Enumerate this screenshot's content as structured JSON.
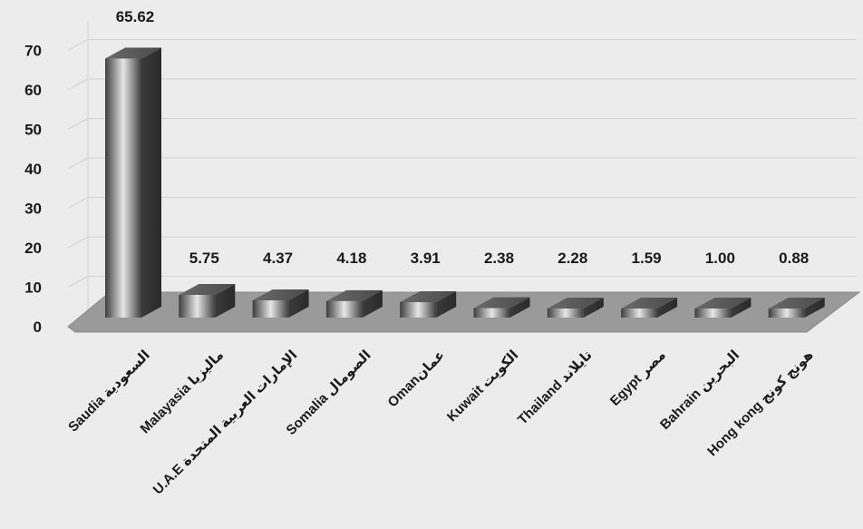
{
  "chart_data": {
    "type": "bar",
    "categories": [
      "Saudia السعودية",
      "Malayasia ماليزيا",
      "U.A.E الإمارات العربية المتحدة",
      "Somalia الصومال",
      "Omanعمان",
      "Kuwait الكويت",
      "Thailand تايلاند",
      "Egypt مصر",
      "Bahrain البحرين",
      "Hong kong هونج كونج"
    ],
    "values": [
      65.62,
      5.75,
      4.37,
      4.18,
      3.91,
      2.38,
      2.28,
      1.59,
      1.0,
      0.88
    ],
    "value_labels": [
      "65.62",
      "5.75",
      "4.37",
      "4.18",
      "3.91",
      "2.38",
      "2.28",
      "1.59",
      "1.00",
      "0.88"
    ],
    "y_ticks": [
      0,
      10,
      20,
      30,
      40,
      50,
      60,
      70
    ],
    "ylim": [
      0,
      70
    ],
    "grid": true,
    "style": "3d-column",
    "colors": {
      "bar_light": "#d9d9d9",
      "bar_dark": "#404040",
      "floor": "#9a9a9a",
      "grid": "#d2d2d2",
      "background": "#ececec"
    }
  }
}
